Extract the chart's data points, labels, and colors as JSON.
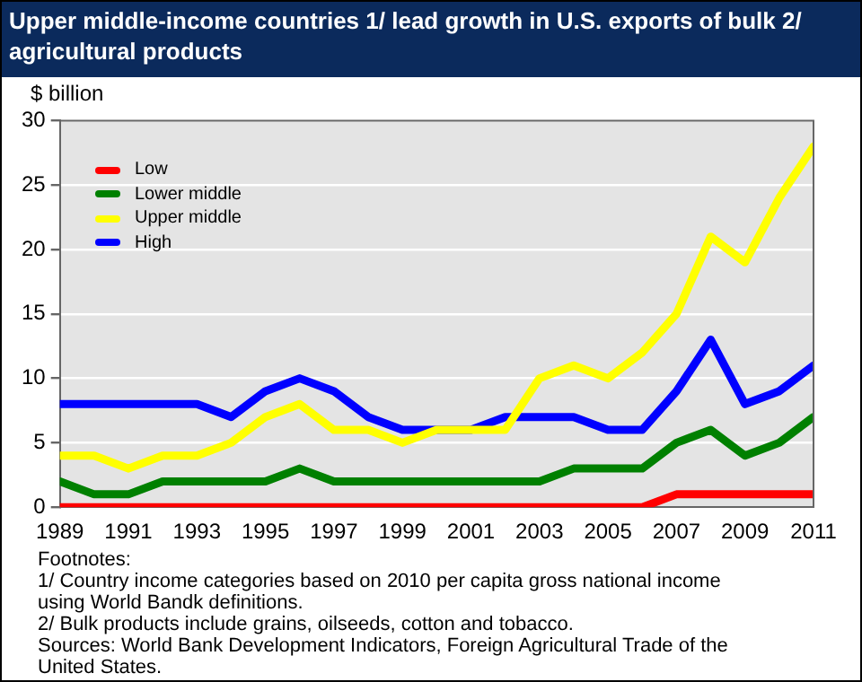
{
  "chart_data": {
    "type": "line",
    "title": "Upper middle-income countries 1/ lead growth in U.S. exports of bulk 2/ agricultural products",
    "ylabel": "$ billion",
    "x": [
      1989,
      1990,
      1991,
      1992,
      1993,
      1994,
      1995,
      1996,
      1997,
      1998,
      1999,
      2000,
      2001,
      2002,
      2003,
      2004,
      2005,
      2006,
      2007,
      2008,
      2009,
      2010,
      2011
    ],
    "series": [
      {
        "name": "Low",
        "color": "#ff0000",
        "values": [
          0,
          0,
          0,
          0,
          0,
          0,
          0,
          0,
          0,
          0,
          0,
          0,
          0,
          0,
          0,
          0,
          0,
          0,
          1,
          1,
          1,
          1,
          1
        ]
      },
      {
        "name": "Lower middle",
        "color": "#008000",
        "values": [
          2,
          1,
          1,
          2,
          2,
          2,
          2,
          3,
          2,
          2,
          2,
          2,
          2,
          2,
          2,
          3,
          3,
          3,
          5,
          6,
          4,
          5,
          7
        ]
      },
      {
        "name": "Upper middle",
        "color": "#ffff00",
        "values": [
          4,
          4,
          3,
          4,
          4,
          5,
          7,
          8,
          6,
          6,
          5,
          6,
          6,
          6,
          10,
          11,
          10,
          12,
          15,
          21,
          19,
          24,
          28
        ]
      },
      {
        "name": "High",
        "color": "#0000ff",
        "values": [
          8,
          8,
          8,
          8,
          8,
          7,
          9,
          10,
          9,
          7,
          6,
          6,
          6,
          7,
          7,
          7,
          6,
          6,
          9,
          13,
          8,
          9,
          11
        ]
      }
    ],
    "xlim": [
      1989,
      2011
    ],
    "xticks": [
      1989,
      1991,
      1993,
      1995,
      1997,
      1999,
      2001,
      2003,
      2005,
      2007,
      2009,
      2011
    ],
    "ylim": [
      0,
      30
    ],
    "yticks": [
      0,
      5,
      10,
      15,
      20,
      25,
      30
    ],
    "grid": "y",
    "legend": "top left",
    "marker": "none",
    "line_style": "solid",
    "annotations": [
      "Footnotes:",
      "1/ Country income categories based on 2010 per capita gross national income using World Bandk definitions.",
      "2/ Bulk products include grains, oilseeds, cotton and tobacco.",
      "Sources:  World Bank Development Indicators, Foreign Agricultural Trade of the United States."
    ]
  }
}
